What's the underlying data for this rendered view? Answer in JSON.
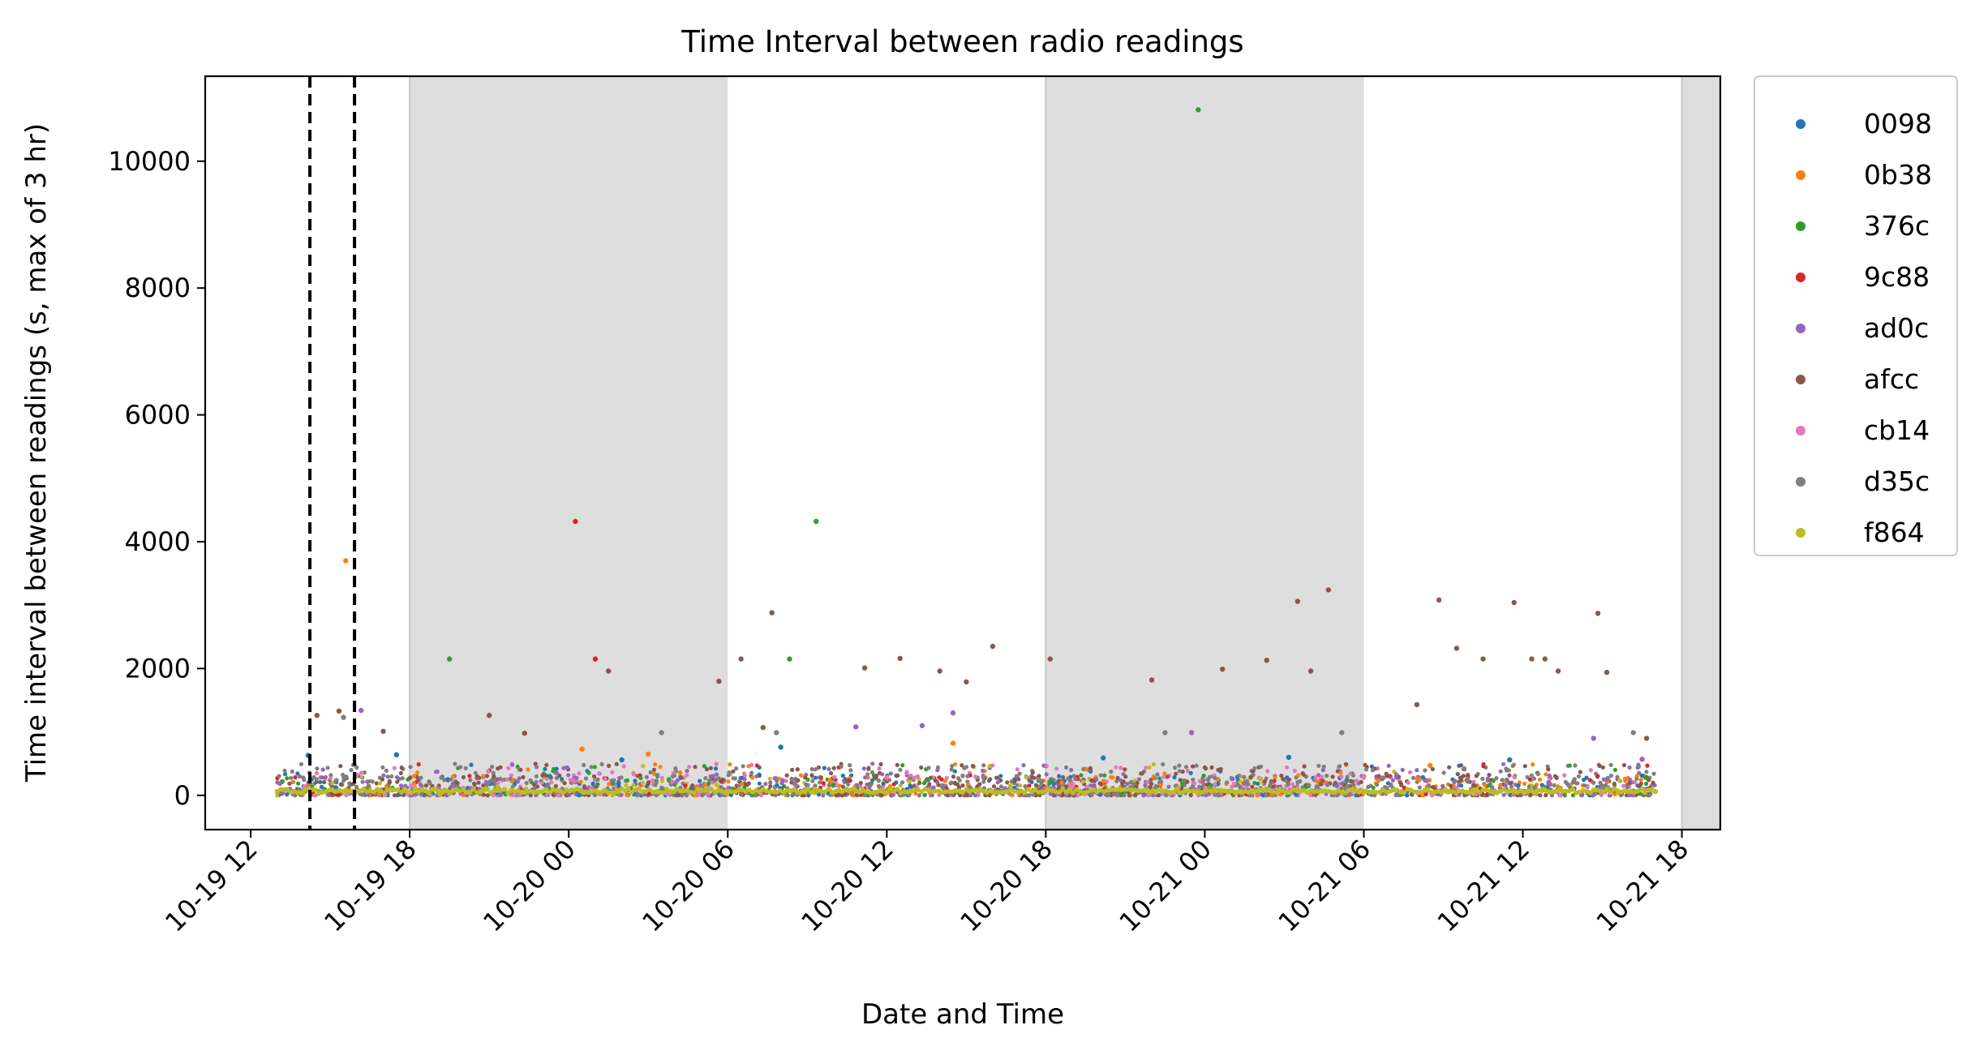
{
  "chart_data": {
    "type": "scatter",
    "title": "Time Interval between radio readings",
    "xlabel": "Date and Time",
    "ylabel": "Time interval between readings (s, max of 3 hr)",
    "x_axis_kind": "datetime",
    "xlim": [
      "10-19 10:17",
      "10-21 19:27"
    ],
    "ylim": [
      -540,
      11340
    ],
    "x_ticks": [
      "10-19 12",
      "10-19 18",
      "10-20 00",
      "10-20 06",
      "10-20 12",
      "10-20 18",
      "10-21 00",
      "10-21 06",
      "10-21 12",
      "10-21 18"
    ],
    "y_ticks": [
      0,
      2000,
      4000,
      6000,
      8000,
      10000
    ],
    "grid": false,
    "legend_position": "outside-right-top",
    "night_bands": [
      [
        "10-19 18:00",
        "10-20 06:00"
      ],
      [
        "10-20 18:00",
        "10-21 06:00"
      ],
      [
        "10-21 18:00",
        "10-21 19:27"
      ]
    ],
    "night_band_color": "#dedede",
    "vertical_markers": [
      "10-19 14:14",
      "10-19 15:55"
    ],
    "vertical_marker_style": "dashed",
    "data_range": [
      "10-19 13:00",
      "10-21 17:00"
    ],
    "baseline_note": "dense points between 0 and ~300 s for all radios",
    "series": [
      {
        "name": "0098",
        "color": "#1f77b4",
        "points": [
          [
            "10-19 14:10",
            630
          ],
          [
            "10-19 17:30",
            640
          ],
          [
            "10-20 02:00",
            560
          ],
          [
            "10-20 08:00",
            760
          ],
          [
            "10-20 20:10",
            590
          ],
          [
            "10-21 03:10",
            600
          ],
          [
            "10-21 11:30",
            560
          ]
        ]
      },
      {
        "name": "0b38",
        "color": "#ff7f0e",
        "points": [
          [
            "10-19 15:35",
            3700
          ],
          [
            "10-20 00:30",
            730
          ],
          [
            "10-20 14:30",
            820
          ],
          [
            "10-20 03:00",
            650
          ],
          [
            "10-21 08:30",
            470
          ]
        ]
      },
      {
        "name": "376c",
        "color": "#2ca02c",
        "points": [
          [
            "10-19 19:30",
            2150
          ],
          [
            "10-20 08:20",
            2150
          ],
          [
            "10-20 09:20",
            4320
          ],
          [
            "10-20 23:45",
            10810
          ]
        ]
      },
      {
        "name": "9c88",
        "color": "#d62728",
        "points": [
          [
            "10-20 00:15",
            4320
          ],
          [
            "10-20 01:00",
            2150
          ]
        ]
      },
      {
        "name": "ad0c",
        "color": "#9467bd",
        "points": [
          [
            "10-19 16:10",
            1340
          ],
          [
            "10-20 10:50",
            1080
          ],
          [
            "10-20 13:20",
            1100
          ],
          [
            "10-20 14:30",
            1300
          ],
          [
            "10-21 14:40",
            900
          ],
          [
            "10-20 23:30",
            990
          ],
          [
            "10-21 16:30",
            570
          ]
        ]
      },
      {
        "name": "afcc",
        "color": "#8c564b",
        "points": [
          [
            "10-19 14:30",
            1260
          ],
          [
            "10-19 15:20",
            1330
          ],
          [
            "10-19 17:00",
            1010
          ],
          [
            "10-19 21:00",
            1260
          ],
          [
            "10-19 22:20",
            980
          ],
          [
            "10-20 01:30",
            1960
          ],
          [
            "10-20 05:40",
            1800
          ],
          [
            "10-20 06:30",
            2150
          ],
          [
            "10-20 07:20",
            1070
          ],
          [
            "10-20 07:40",
            2880
          ],
          [
            "10-20 11:10",
            2010
          ],
          [
            "10-20 12:30",
            2160
          ],
          [
            "10-20 14:00",
            1960
          ],
          [
            "10-20 15:00",
            1790
          ],
          [
            "10-20 16:00",
            2350
          ],
          [
            "10-20 18:10",
            2150
          ],
          [
            "10-20 22:00",
            1820
          ],
          [
            "10-21 00:40",
            1990
          ],
          [
            "10-21 02:20",
            2130
          ],
          [
            "10-21 03:30",
            3060
          ],
          [
            "10-21 04:00",
            1960
          ],
          [
            "10-21 04:40",
            3240
          ],
          [
            "10-21 08:00",
            1430
          ],
          [
            "10-21 08:50",
            3080
          ],
          [
            "10-21 09:30",
            2320
          ],
          [
            "10-21 10:30",
            2150
          ],
          [
            "10-21 11:40",
            3040
          ],
          [
            "10-21 12:20",
            2150
          ],
          [
            "10-21 12:50",
            2150
          ],
          [
            "10-21 13:20",
            1960
          ],
          [
            "10-21 14:50",
            2870
          ],
          [
            "10-21 15:10",
            1940
          ],
          [
            "10-21 16:40",
            900
          ]
        ]
      },
      {
        "name": "cb14",
        "color": "#e377c2",
        "points": [
          [
            "10-19 16:00",
            320
          ],
          [
            "10-20 12:00",
            280
          ],
          [
            "10-21 06:00",
            300
          ]
        ]
      },
      {
        "name": "d35c",
        "color": "#7f7f7f",
        "points": [
          [
            "10-19 15:30",
            1230
          ],
          [
            "10-20 03:30",
            990
          ],
          [
            "10-20 07:50",
            990
          ],
          [
            "10-20 22:30",
            990
          ],
          [
            "10-21 05:10",
            990
          ],
          [
            "10-21 16:10",
            990
          ]
        ]
      },
      {
        "name": "f864",
        "color": "#bcbd22",
        "points": [
          [
            "10-19 13:00",
            60
          ],
          [
            "10-20 06:00",
            60
          ],
          [
            "10-21 17:00",
            60
          ]
        ]
      }
    ]
  }
}
